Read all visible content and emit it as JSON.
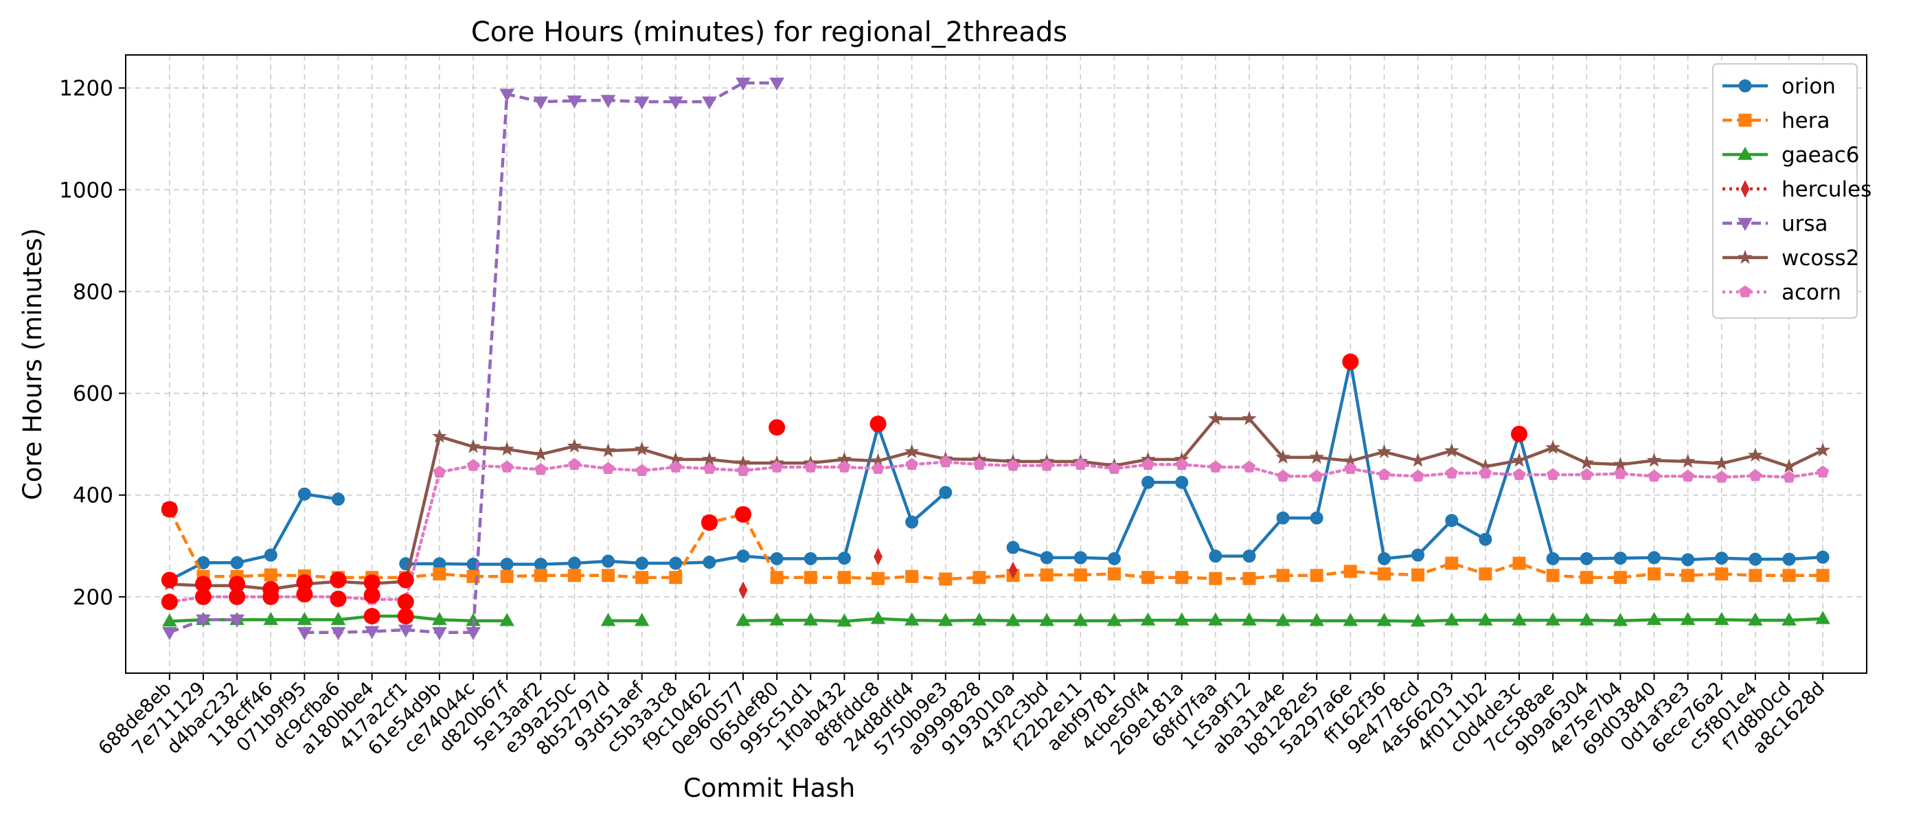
{
  "chart_data": {
    "type": "line",
    "title": "Core Hours (minutes) for regional_2threads",
    "xlabel": "Commit Hash",
    "ylabel": "Core Hours (minutes)",
    "ylim": [
      50,
      1265
    ],
    "yticks": [
      200,
      400,
      600,
      800,
      1000,
      1200
    ],
    "grid": true,
    "legend_position": "top-right",
    "categories": [
      "688de8eb",
      "7e711129",
      "d4bac232",
      "118cff46",
      "071b9f95",
      "dc9cfba6",
      "a180bbe4",
      "417a2cf1",
      "61e54d9b",
      "ce74044c",
      "d820b67f",
      "5e13aaf2",
      "e39a250c",
      "8b52797d",
      "93d51aef",
      "c5b3a3c8",
      "f9c10462",
      "0e960577",
      "065def80",
      "995c51d1",
      "1f0ab432",
      "8f8fddc8",
      "24d8dfd4",
      "5750b9e3",
      "a9999828",
      "9193010a",
      "43f2c3bd",
      "f22b2e11",
      "aebf9781",
      "4cbe50f4",
      "269e181a",
      "68fd7faa",
      "1c5a9f12",
      "aba31a4e",
      "b81282e5",
      "5a297a6e",
      "ff162f36",
      "9e4778cd",
      "4a566203",
      "4f0111b2",
      "c0d4de3c",
      "7cc588ae",
      "9b9a6304",
      "4e75e7b4",
      "69d03840",
      "0d1af3e3",
      "6ece76a2",
      "c5f801e4",
      "f7d8b0cd",
      "a8c1628d"
    ],
    "series": [
      {
        "name": "orion",
        "color": "#1f77b4",
        "marker": "circle",
        "linestyle": "solid",
        "values": [
          233,
          267,
          267,
          282,
          402,
          392,
          null,
          265,
          265,
          264,
          264,
          264,
          266,
          270,
          266,
          266,
          268,
          280,
          275,
          275,
          276,
          535,
          347,
          405,
          null,
          297,
          277,
          277,
          275,
          425,
          425,
          280,
          280,
          355,
          355,
          662,
          275,
          282,
          350,
          313,
          520,
          275,
          275,
          276,
          277,
          273,
          276,
          274,
          274,
          278
        ]
      },
      {
        "name": "hera",
        "color": "#ff7f0e",
        "marker": "square",
        "linestyle": "dashed",
        "values": [
          372,
          240,
          240,
          243,
          241,
          238,
          238,
          238,
          245,
          240,
          240,
          242,
          242,
          242,
          238,
          238,
          346,
          362,
          238,
          238,
          238,
          236,
          240,
          235,
          238,
          242,
          243,
          243,
          245,
          238,
          238,
          236,
          236,
          242,
          242,
          250,
          245,
          243,
          266,
          245,
          266,
          242,
          238,
          238,
          245,
          242,
          245,
          242,
          242,
          242
        ]
      },
      {
        "name": "gaeac6",
        "color": "#2ca02c",
        "marker": "triangle-up",
        "linestyle": "solid",
        "values": [
          152,
          155,
          155,
          155,
          155,
          155,
          162,
          162,
          155,
          153,
          153,
          null,
          null,
          153,
          153,
          null,
          null,
          153,
          154,
          154,
          152,
          157,
          154,
          153,
          154,
          153,
          153,
          153,
          153,
          154,
          154,
          154,
          154,
          153,
          153,
          153,
          153,
          152,
          154,
          154,
          154,
          154,
          154,
          153,
          155,
          155,
          155,
          154,
          154,
          157
        ]
      },
      {
        "name": "hercules",
        "color": "#d62728",
        "marker": "diamond",
        "linestyle": "dotted",
        "values": [
          null,
          null,
          null,
          null,
          null,
          null,
          null,
          null,
          null,
          null,
          null,
          null,
          null,
          null,
          null,
          null,
          null,
          213,
          null,
          null,
          null,
          279,
          null,
          null,
          null,
          252,
          null,
          null,
          null,
          null,
          null,
          null,
          null,
          null,
          null,
          null,
          null,
          null,
          null,
          null,
          null,
          null,
          null,
          null,
          null,
          null,
          null,
          null,
          null,
          null
        ]
      },
      {
        "name": "ursa",
        "color": "#9467bd",
        "marker": "triangle-down",
        "linestyle": "dashed",
        "values": [
          130,
          155,
          155,
          null,
          130,
          130,
          132,
          135,
          130,
          130,
          1188,
          1173,
          1175,
          1176,
          1173,
          1173,
          1173,
          1210,
          1210,
          null,
          null,
          null,
          null,
          null,
          null,
          null,
          null,
          null,
          null,
          null,
          null,
          null,
          null,
          null,
          null,
          null,
          null,
          null,
          null,
          null,
          null,
          null,
          null,
          null,
          null,
          null,
          null,
          null,
          null,
          null
        ]
      },
      {
        "name": "wcoss2",
        "color": "#8c564b",
        "marker": "star",
        "linestyle": "solid",
        "values": [
          225,
          222,
          222,
          215,
          225,
          230,
          226,
          230,
          515,
          495,
          490,
          480,
          496,
          487,
          490,
          470,
          470,
          463,
          463,
          463,
          470,
          467,
          485,
          471,
          470,
          466,
          466,
          466,
          458,
          470,
          470,
          550,
          550,
          474,
          474,
          467,
          485,
          468,
          487,
          456,
          468,
          493,
          463,
          460,
          468,
          466,
          462,
          478,
          456,
          488
        ]
      },
      {
        "name": "acorn",
        "color": "#e377c2",
        "marker": "pentagon",
        "linestyle": "dotted",
        "values": [
          190,
          200,
          200,
          200,
          200,
          200,
          195,
          195,
          445,
          458,
          455,
          450,
          460,
          452,
          448,
          455,
          452,
          448,
          455,
          455,
          455,
          452,
          460,
          465,
          460,
          458,
          458,
          460,
          452,
          460,
          460,
          455,
          455,
          437,
          437,
          452,
          440,
          437,
          443,
          443,
          440,
          440,
          440,
          442,
          437,
          437,
          435,
          438,
          435,
          445
        ]
      }
    ],
    "highlight_markers": {
      "color": "#ff0000",
      "points": [
        {
          "x": "688de8eb",
          "y": 372
        },
        {
          "x": "688de8eb",
          "y": 233
        },
        {
          "x": "688de8eb",
          "y": 190
        },
        {
          "x": "7e711129",
          "y": 225
        },
        {
          "x": "7e711129",
          "y": 200
        },
        {
          "x": "d4bac232",
          "y": 225
        },
        {
          "x": "d4bac232",
          "y": 200
        },
        {
          "x": "118cff46",
          "y": 215
        },
        {
          "x": "118cff46",
          "y": 200
        },
        {
          "x": "071b9f95",
          "y": 228
        },
        {
          "x": "071b9f95",
          "y": 205
        },
        {
          "x": "dc9cfba6",
          "y": 233
        },
        {
          "x": "dc9cfba6",
          "y": 196
        },
        {
          "x": "a180bbe4",
          "y": 228
        },
        {
          "x": "a180bbe4",
          "y": 203
        },
        {
          "x": "a180bbe4",
          "y": 162
        },
        {
          "x": "417a2cf1",
          "y": 233
        },
        {
          "x": "417a2cf1",
          "y": 190
        },
        {
          "x": "417a2cf1",
          "y": 162
        },
        {
          "x": "f9c10462",
          "y": 346
        },
        {
          "x": "0e960577",
          "y": 362
        },
        {
          "x": "065def80",
          "y": 533
        },
        {
          "x": "8f8fddc8",
          "y": 540
        },
        {
          "x": "5a297a6e",
          "y": 662
        },
        {
          "x": "c0d4de3c",
          "y": 520
        }
      ]
    }
  }
}
